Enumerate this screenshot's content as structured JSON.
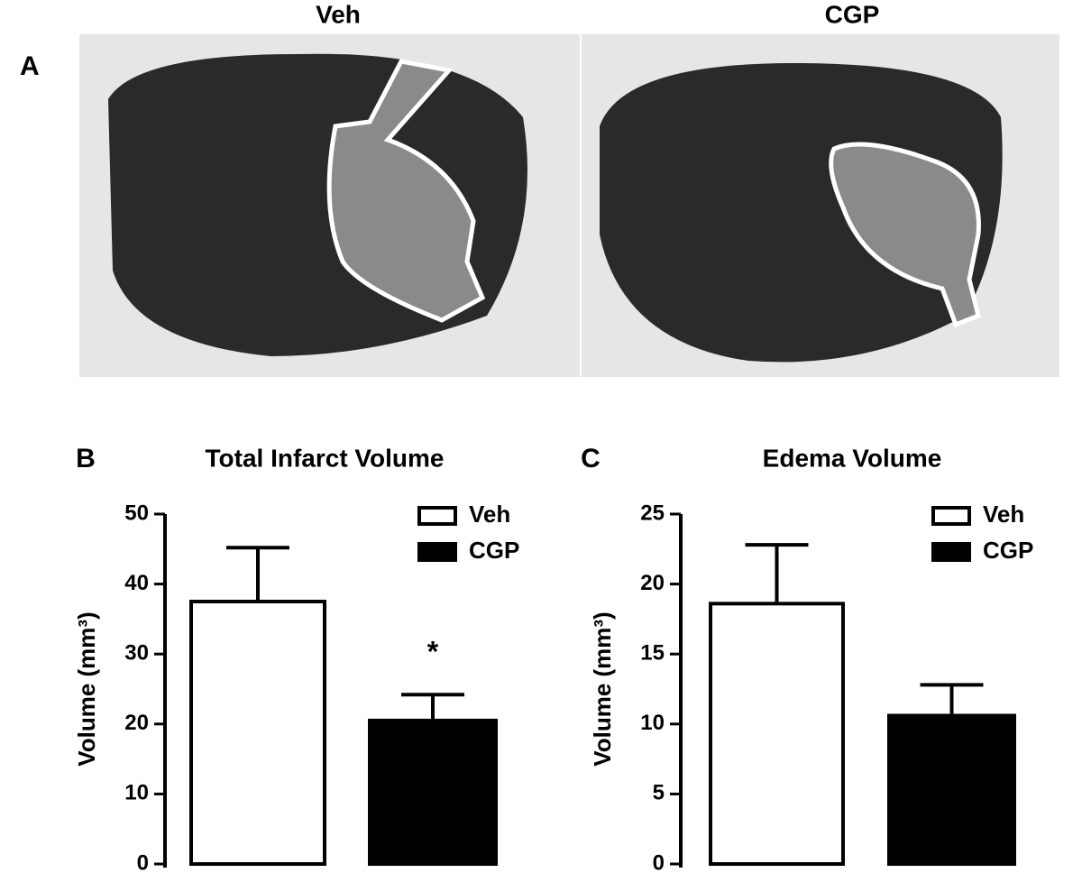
{
  "panel_a": {
    "label": "A",
    "titles": [
      "Veh",
      "CGP"
    ]
  },
  "chart_data": [
    {
      "type": "bar",
      "panel_label": "B",
      "title": "Total Infarct Volume",
      "y_label": "Volume (mm³)",
      "ylim": [
        0,
        50
      ],
      "yticks": [
        0,
        10,
        20,
        30,
        40,
        50
      ],
      "series": [
        {
          "name": "Veh",
          "color": "#ffffff",
          "values": [
            37.5
          ],
          "errors": [
            7.7
          ]
        },
        {
          "name": "CGP",
          "color": "#000000",
          "values": [
            20.5
          ],
          "errors": [
            3.7
          ]
        }
      ],
      "annotations": [
        "*"
      ]
    },
    {
      "type": "bar",
      "panel_label": "C",
      "title": "Edema Volume",
      "y_label": "Volume (mm³)",
      "ylim": [
        0,
        25
      ],
      "yticks": [
        0,
        5,
        10,
        15,
        20,
        25
      ],
      "series": [
        {
          "name": "Veh",
          "color": "#ffffff",
          "values": [
            18.6
          ],
          "errors": [
            4.2
          ]
        },
        {
          "name": "CGP",
          "color": "#000000",
          "values": [
            10.6
          ],
          "errors": [
            2.2
          ]
        }
      ]
    }
  ]
}
